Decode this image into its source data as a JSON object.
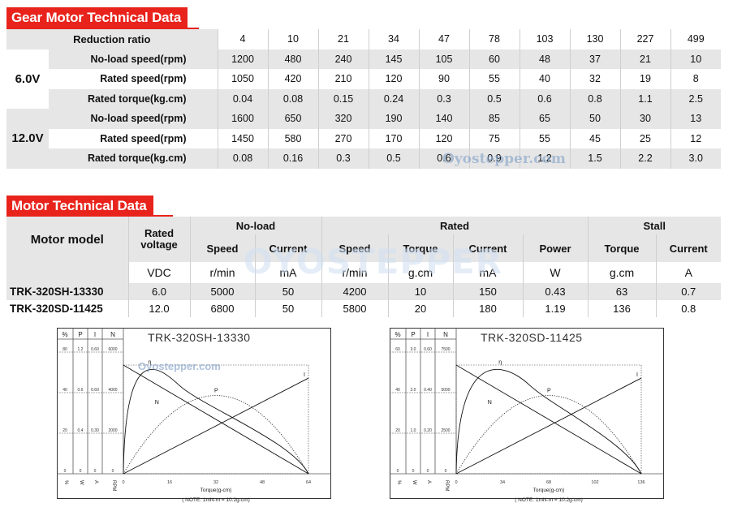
{
  "gear": {
    "title": "Gear Motor Technical Data",
    "ratio_label": "Reduction ratio",
    "ratios": [
      "4",
      "10",
      "21",
      "34",
      "47",
      "78",
      "103",
      "130",
      "227",
      "499"
    ],
    "groups": [
      {
        "voltage": "6.0V",
        "rows": [
          {
            "label": "No-load speed(rpm)",
            "values": [
              "1200",
              "480",
              "240",
              "145",
              "105",
              "60",
              "48",
              "37",
              "21",
              "10"
            ]
          },
          {
            "label": "Rated speed(rpm)",
            "values": [
              "1050",
              "420",
              "210",
              "120",
              "90",
              "55",
              "40",
              "32",
              "19",
              "8"
            ]
          },
          {
            "label": "Rated torque(kg.cm)",
            "values": [
              "0.04",
              "0.08",
              "0.15",
              "0.24",
              "0.3",
              "0.5",
              "0.6",
              "0.8",
              "1.1",
              "2.5"
            ]
          }
        ]
      },
      {
        "voltage": "12.0V",
        "rows": [
          {
            "label": "No-load speed(rpm)",
            "values": [
              "1600",
              "650",
              "320",
              "190",
              "140",
              "85",
              "65",
              "50",
              "30",
              "13"
            ]
          },
          {
            "label": "Rated speed(rpm)",
            "values": [
              "1450",
              "580",
              "270",
              "170",
              "120",
              "75",
              "55",
              "45",
              "25",
              "12"
            ]
          },
          {
            "label": "Rated torque(kg.cm)",
            "values": [
              "0.08",
              "0.16",
              "0.3",
              "0.5",
              "0.6",
              "0.9",
              "1.2",
              "1.5",
              "2.2",
              "3.0"
            ]
          }
        ]
      }
    ],
    "watermark": "Oyostepper.com"
  },
  "motor": {
    "title": "Motor Technical Data",
    "model_header": "Motor model",
    "rated_voltage_header": "Rated voltage",
    "noload_header": "No-load",
    "rated_header": "Rated",
    "stall_header": "Stall",
    "sub": {
      "speed": "Speed",
      "current": "Current",
      "speed2": "Speed",
      "torque": "Torque",
      "current2": "Current",
      "power": "Power",
      "torque2": "Torque",
      "current3": "Current"
    },
    "units": [
      "VDC",
      "r/min",
      "mA",
      "r/min",
      "g.cm",
      "mA",
      "W",
      "g.cm",
      "A"
    ],
    "rows": [
      {
        "model": "TRK-320SH-13330",
        "values": [
          "6.0",
          "5000",
          "50",
          "4200",
          "10",
          "150",
          "0.43",
          "63",
          "0.7"
        ]
      },
      {
        "model": "TRK-320SD-11425",
        "values": [
          "12.0",
          "6800",
          "50",
          "5800",
          "20",
          "180",
          "1.19",
          "136",
          "0.8"
        ]
      }
    ],
    "watermark": "OYOSTEPPER"
  },
  "charts": [
    {
      "title": "TRK-320SH-13330",
      "watermark": "Oyostepper.com",
      "col_heads": [
        "%",
        "P",
        "I",
        "N"
      ],
      "col_units": [
        "%",
        "W",
        "A",
        "RPM"
      ],
      "rows": [
        [
          "80",
          "1.2",
          "0.60",
          "6000"
        ],
        [
          "40",
          "0.6",
          "0.60",
          "4000"
        ],
        [
          "20",
          "0.4",
          "0.30",
          "2000"
        ],
        [
          "0",
          "0",
          "0",
          "0"
        ]
      ],
      "x_ticks": [
        "0",
        "16",
        "32",
        "48",
        "64"
      ],
      "xlabel": "Torque(g-cm)",
      "note": "( NOTE: 1mN-m = 10.2g-cm)",
      "curve_labels": {
        "eff": "η",
        "speed": "N",
        "power": "P",
        "current": "I"
      },
      "chart_data": {
        "type": "line",
        "x_range": [
          0,
          64
        ],
        "series": [
          {
            "name": "N",
            "x": [
              0,
              64
            ],
            "y": [
              1,
              0
            ]
          },
          {
            "name": "I",
            "x": [
              0,
              64
            ],
            "y": [
              0,
              1
            ]
          },
          {
            "name": "P",
            "x": [
              0,
              32,
              64
            ],
            "y": [
              0,
              1,
              0
            ]
          },
          {
            "name": "η",
            "x": [
              0,
              8,
              64
            ],
            "y": [
              0,
              1,
              0
            ]
          }
        ]
      }
    },
    {
      "title": "TRK-320SD-11425",
      "watermark": "",
      "col_heads": [
        "%",
        "P",
        "I",
        "N"
      ],
      "col_units": [
        "%",
        "W",
        "A",
        "RPM"
      ],
      "rows": [
        [
          "60",
          "3.0",
          "0.60",
          "7500"
        ],
        [
          "40",
          "2.0",
          "0.40",
          "5000"
        ],
        [
          "20",
          "1.0",
          "0.20",
          "2500"
        ],
        [
          "0",
          "0",
          "0",
          "0"
        ]
      ],
      "x_ticks": [
        "0",
        "34",
        "68",
        "102",
        "136"
      ],
      "xlabel": "Torque(g-cm)",
      "note": "( NOTE: 1mN-m = 10.2g-cm)",
      "curve_labels": {
        "eff": "η",
        "speed": "N",
        "power": "P",
        "current": "I"
      },
      "chart_data": {
        "type": "line",
        "x_range": [
          0,
          136
        ],
        "series": [
          {
            "name": "N",
            "x": [
              0,
              136
            ],
            "y": [
              1,
              0
            ]
          },
          {
            "name": "I",
            "x": [
              0,
              136
            ],
            "y": [
              0,
              1
            ]
          },
          {
            "name": "P",
            "x": [
              0,
              68,
              136
            ],
            "y": [
              0,
              1,
              0
            ]
          },
          {
            "name": "η",
            "x": [
              0,
              30,
              136
            ],
            "y": [
              0,
              1,
              0
            ]
          }
        ]
      }
    }
  ]
}
